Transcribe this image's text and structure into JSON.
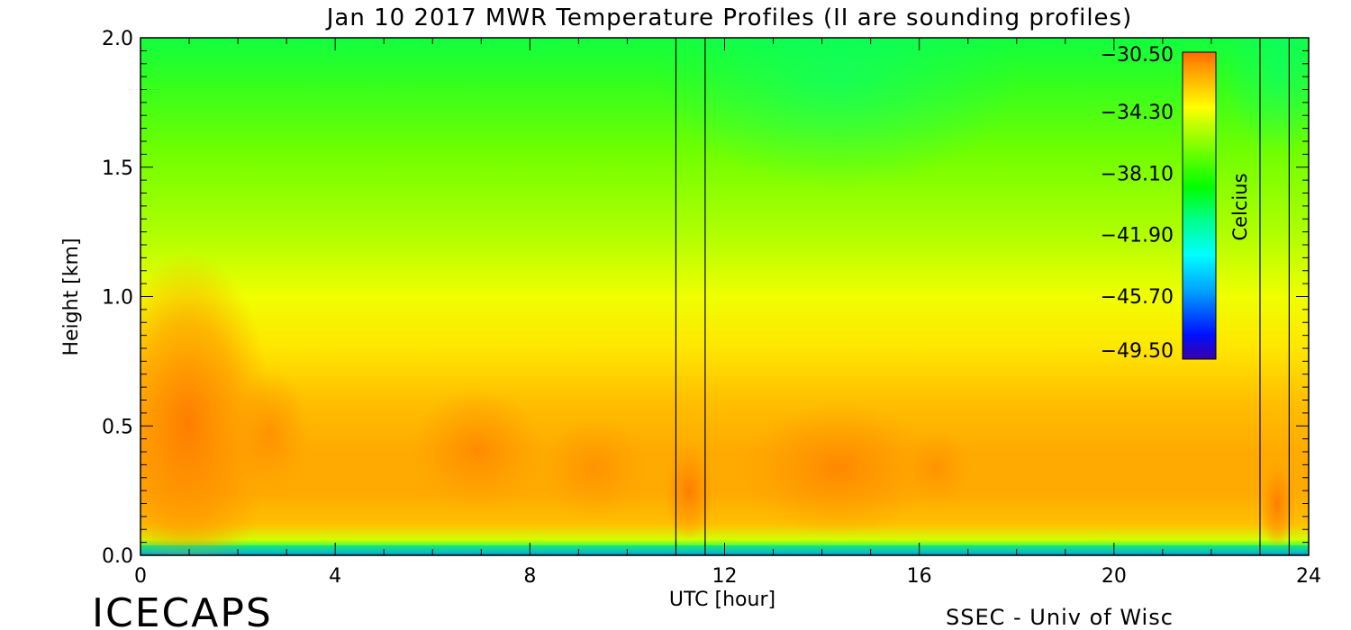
{
  "chart_data": {
    "type": "heatmap",
    "title": "Jan 10 2017 MWR Temperature Profiles (II are sounding profiles)",
    "xlabel": "UTC [hour]",
    "ylabel": "Height [km]",
    "xlim": [
      0,
      24
    ],
    "ylim": [
      0,
      2.0
    ],
    "x_ticks": [
      0,
      4,
      8,
      12,
      16,
      20,
      24
    ],
    "x_tick_labels": [
      "0",
      "4",
      "8",
      "12",
      "16",
      "20",
      "24"
    ],
    "y_ticks": [
      0.0,
      0.5,
      1.0,
      1.5,
      2.0
    ],
    "y_tick_labels": [
      "0.0",
      "0.5",
      "1.0",
      "1.5",
      "2.0"
    ],
    "colorbar": {
      "label": "Celcius",
      "min": -49.5,
      "max": -30.5,
      "ticks": [
        -30.5,
        -34.3,
        -38.1,
        -41.9,
        -45.7,
        -49.5
      ],
      "tick_labels": [
        "−30.50",
        "−34.30",
        "−38.10",
        "−41.90",
        "−45.70",
        "−49.50"
      ],
      "colormap": [
        "#3a00a8",
        "#0010ff",
        "#00a0ff",
        "#00ffff",
        "#00ff90",
        "#00ff00",
        "#60ff00",
        "#c0ff00",
        "#ffff00",
        "#ffc000",
        "#ff9000",
        "#ff6a00"
      ]
    },
    "sounding_times": [
      11.0,
      11.6,
      23.0,
      23.6
    ],
    "approx_profile": {
      "heights_km": [
        0.0,
        0.05,
        0.1,
        0.2,
        0.3,
        0.4,
        0.5,
        0.6,
        0.7,
        0.8,
        1.0,
        1.2,
        1.5,
        1.8,
        2.0
      ],
      "temperature_c": [
        -47.0,
        -40.0,
        -34.5,
        -32.5,
        -32.0,
        -32.0,
        -32.5,
        -33.0,
        -33.5,
        -34.0,
        -35.0,
        -36.0,
        -37.5,
        -38.3,
        -39.0
      ]
    }
  },
  "labels": {
    "logo_text": "ICECAPS",
    "credit": "SSEC - Univ of Wisc"
  }
}
